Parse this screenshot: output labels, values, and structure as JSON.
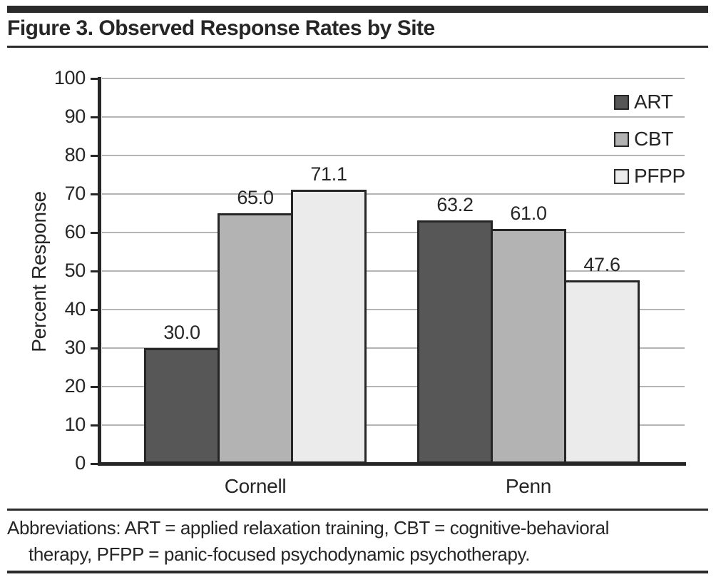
{
  "figure": {
    "title": "Figure 3. Observed Response Rates by Site",
    "footnote_lines": [
      "Abbreviations: ART = applied relaxation training, CBT = cognitive-behavioral",
      "therapy, PFPP = panic-focused psychodynamic psychotherapy."
    ],
    "footnote_full": "Abbreviations: ART = applied relaxation training, CBT = cognitive-behavioral therapy, PFPP = panic-focused psychodynamic psychotherapy."
  },
  "chart_data": {
    "type": "bar",
    "title": "Figure 3. Observed Response Rates by Site",
    "categories": [
      "Cornell",
      "Penn"
    ],
    "series": [
      {
        "name": "ART",
        "color": "#575757",
        "values": [
          30.0,
          63.2
        ]
      },
      {
        "name": "CBT",
        "color": "#b3b3b3",
        "values": [
          65.0,
          61.0
        ]
      },
      {
        "name": "PFPP",
        "color": "#ebebeb",
        "values": [
          71.1,
          47.6
        ]
      }
    ],
    "xlabel": "",
    "ylabel": "Percent Response",
    "ylim": [
      0,
      100
    ],
    "yticks": [
      0,
      10,
      20,
      30,
      40,
      50,
      60,
      70,
      80,
      90,
      100
    ],
    "grid": true,
    "legend_position": "top-right",
    "value_label_decimals": 1,
    "colors": {
      "axis": "#262626",
      "gridline": "#b4b4b4",
      "text": "#262626",
      "bar_border": "#262626"
    }
  }
}
